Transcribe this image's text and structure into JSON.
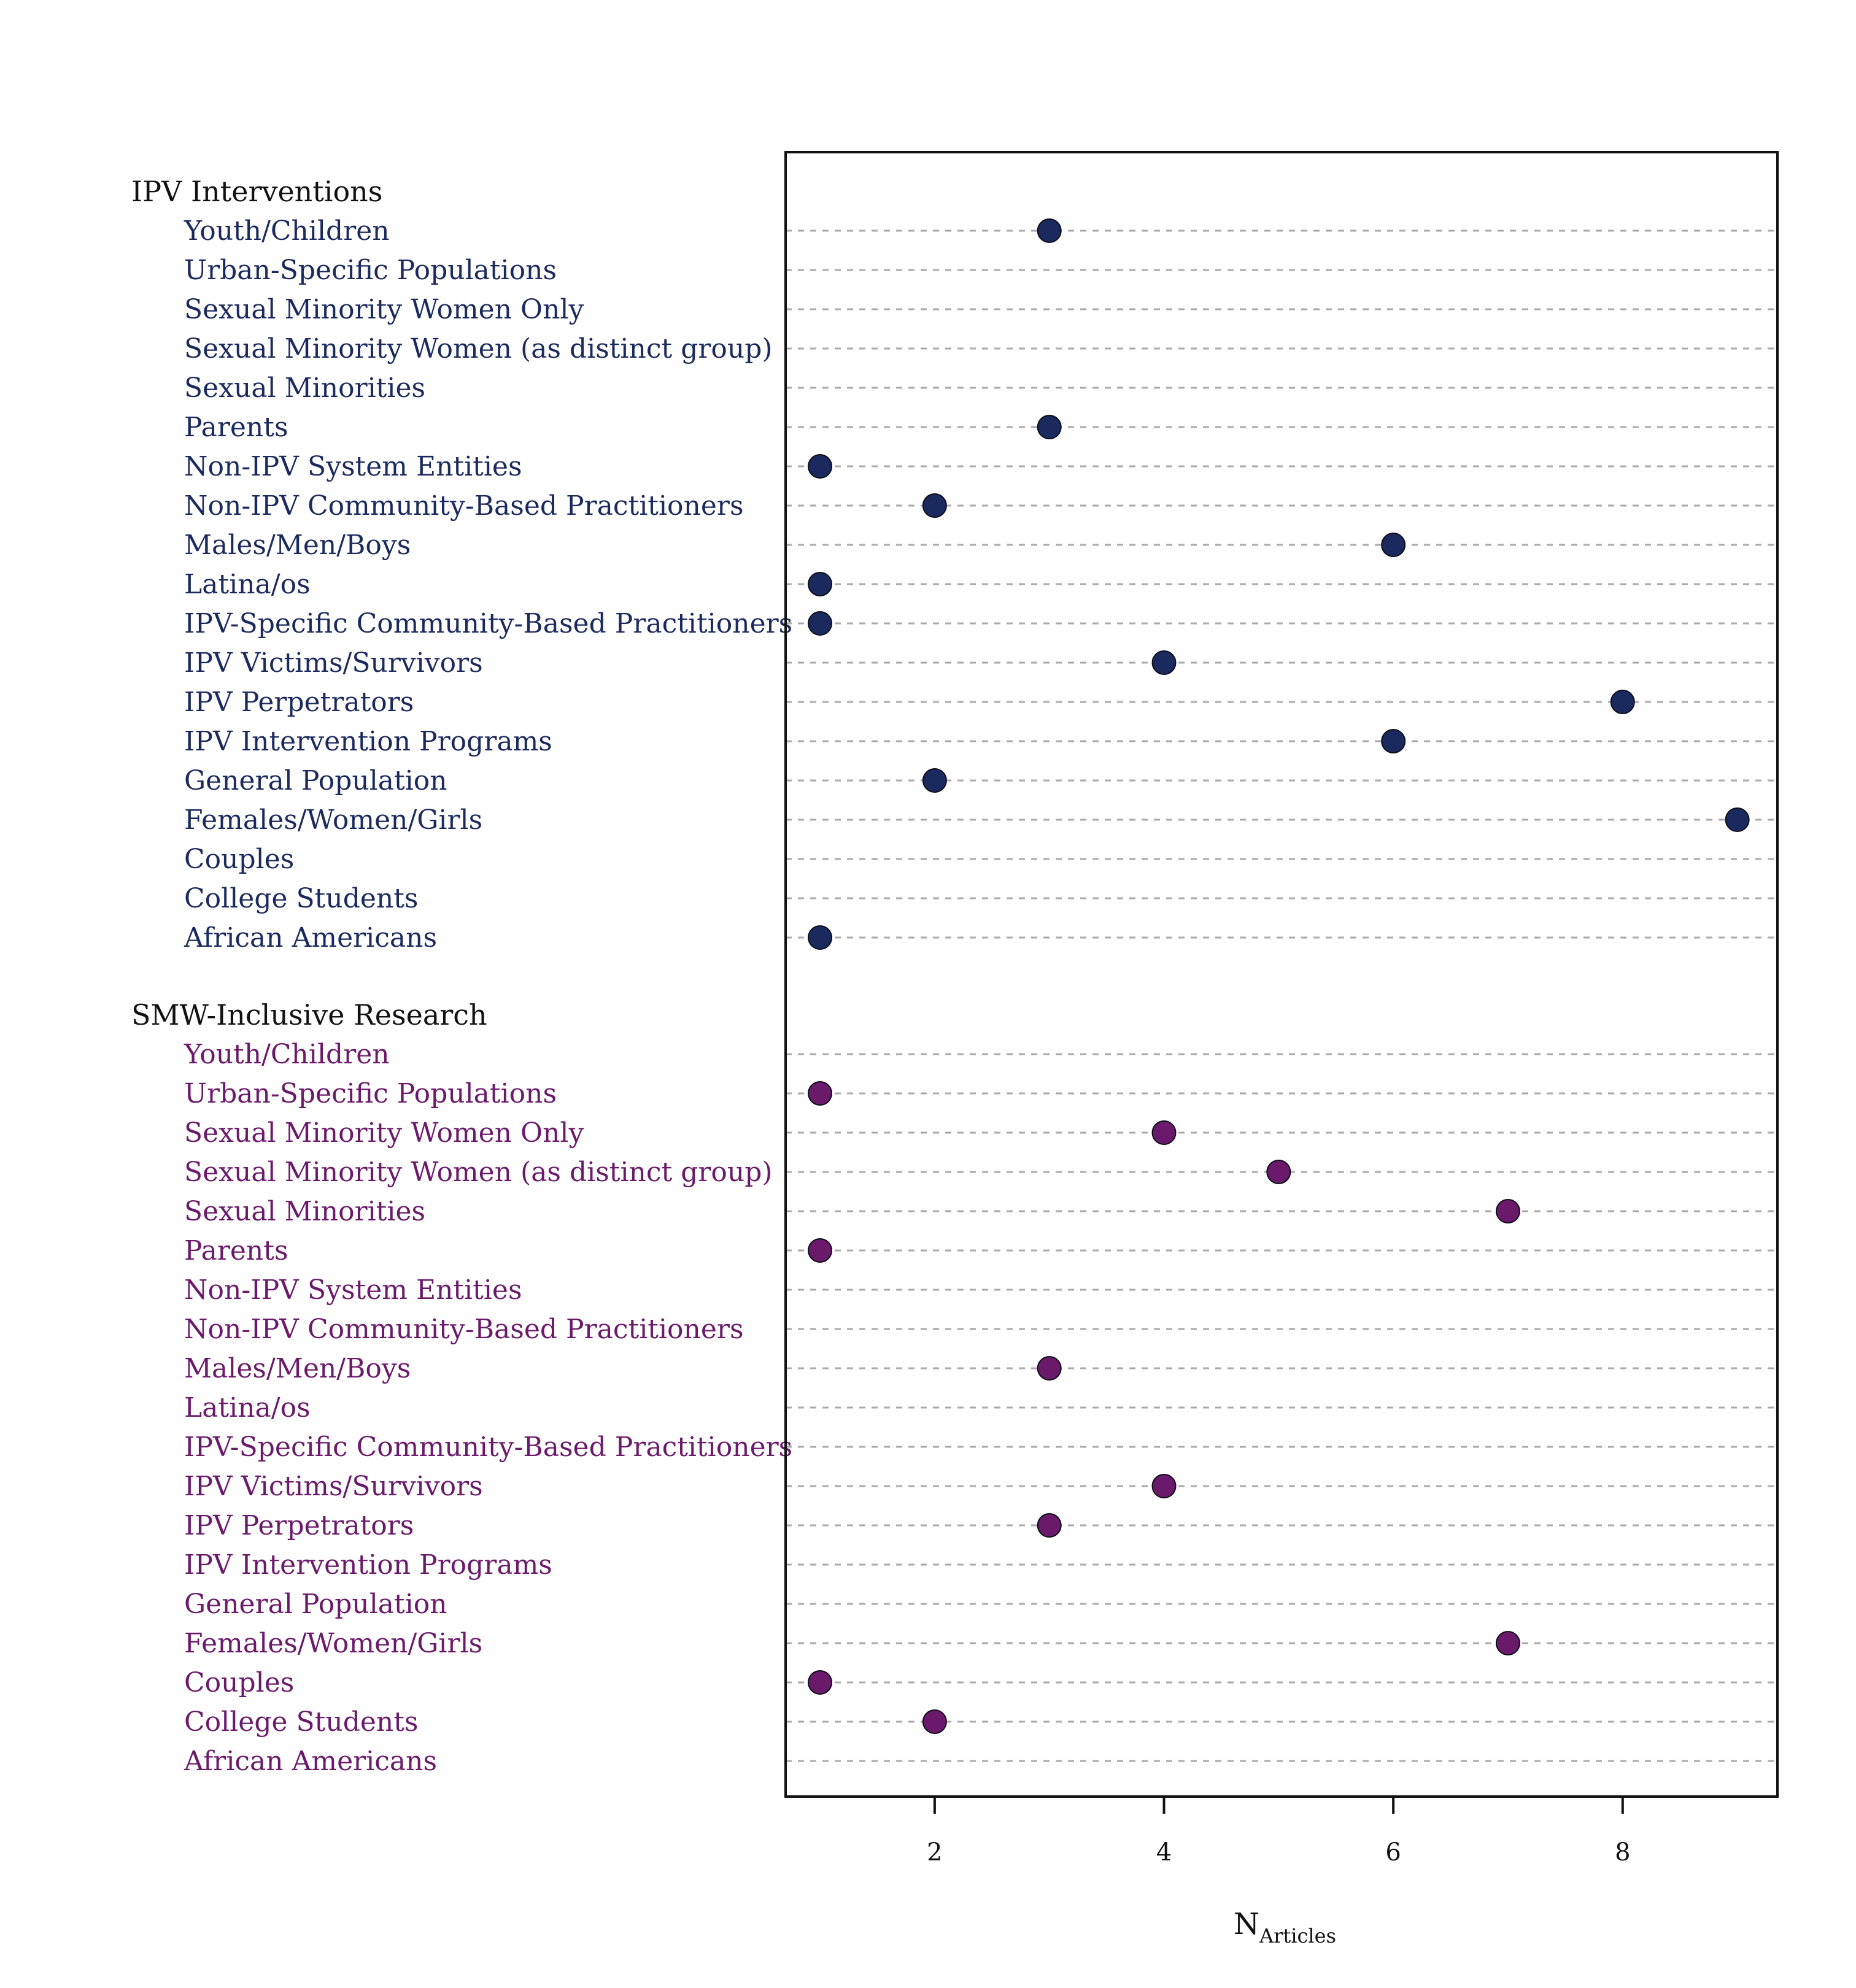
{
  "chart_data": {
    "type": "scatter",
    "xlabel": "N",
    "xlabel_subscript": "Articles",
    "xlim": [
      0.7,
      9.35
    ],
    "x_ticks": [
      2,
      4,
      6,
      8
    ],
    "grid": true,
    "colors": {
      "IPV Interventions": "#1b2a5e",
      "SMW-Inclusive Research": "#6b1a6b"
    },
    "groups": [
      {
        "name": "IPV Interventions",
        "color": "#1b2a5e",
        "categories": [
          "Youth/Children",
          "Urban-Specific Populations",
          "Sexual Minority Women Only",
          "Sexual Minority Women (as distinct group)",
          "Sexual Minorities",
          "Parents",
          "Non-IPV System Entities",
          "Non-IPV Community-Based Practitioners",
          "Males/Men/Boys",
          "Latina/os",
          "IPV-Specific Community-Based Practitioners",
          "IPV Victims/Survivors",
          "IPV Perpetrators",
          "IPV Intervention Programs",
          "General Population",
          "Females/Women/Girls",
          "Couples",
          "College Students",
          "African Americans"
        ],
        "values": [
          3,
          null,
          null,
          null,
          null,
          3,
          1,
          2,
          6,
          1,
          1,
          4,
          8,
          6,
          2,
          9,
          null,
          null,
          1
        ]
      },
      {
        "name": "SMW-Inclusive Research",
        "color": "#6b1a6b",
        "categories": [
          "Youth/Children",
          "Urban-Specific Populations",
          "Sexual Minority Women Only",
          "Sexual Minority Women (as distinct group)",
          "Sexual Minorities",
          "Parents",
          "Non-IPV System Entities",
          "Non-IPV Community-Based Practitioners",
          "Males/Men/Boys",
          "Latina/os",
          "IPV-Specific Community-Based Practitioners",
          "IPV Victims/Survivors",
          "IPV Perpetrators",
          "IPV Intervention Programs",
          "General Population",
          "Females/Women/Girls",
          "Couples",
          "College Students",
          "African Americans"
        ],
        "values": [
          null,
          1,
          4,
          5,
          7,
          1,
          null,
          null,
          3,
          null,
          null,
          4,
          3,
          null,
          null,
          7,
          1,
          2,
          null
        ]
      }
    ]
  }
}
